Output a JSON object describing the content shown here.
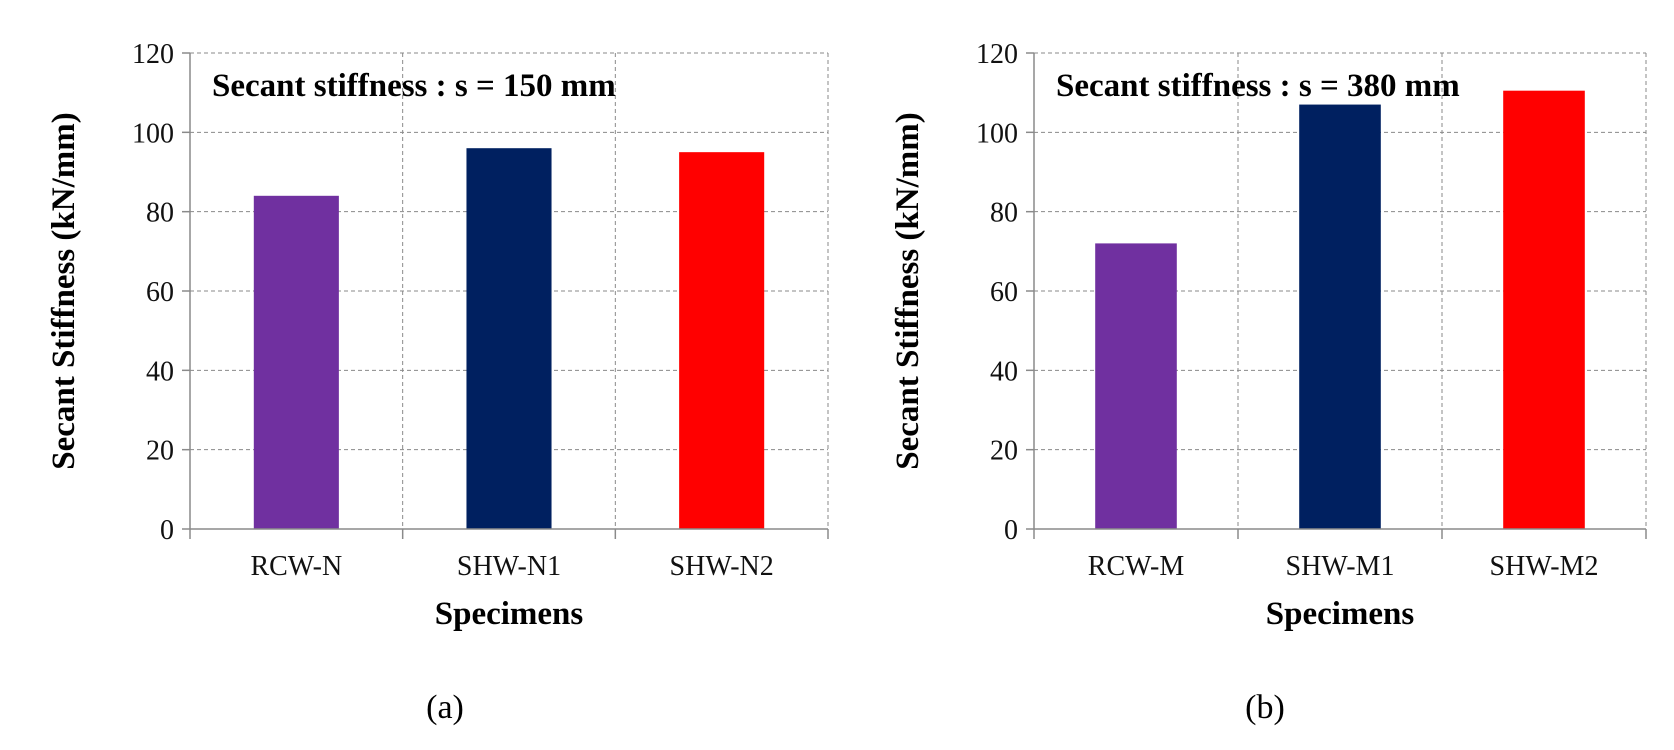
{
  "chart_data": [
    {
      "type": "bar",
      "panel_label": "(a)",
      "title": "Secant stiffness : s = 150 mm",
      "xlabel": "Specimens",
      "ylabel": "Secant Stiffness (kN/mm)",
      "ylim": [
        0,
        120
      ],
      "yticks": [
        0,
        20,
        40,
        60,
        80,
        100,
        120
      ],
      "grid": true,
      "categories": [
        "RCW-N",
        "SHW-N1",
        "SHW-N2"
      ],
      "values": [
        84,
        96,
        95
      ],
      "colors": [
        "#7030a0",
        "#002060",
        "#ff0000"
      ]
    },
    {
      "type": "bar",
      "panel_label": "(b)",
      "title": "Secant stiffness : s = 380 mm",
      "xlabel": "Specimens",
      "ylabel": "Secant Stiffness (kN/mm)",
      "ylim": [
        0,
        120
      ],
      "yticks": [
        0,
        20,
        40,
        60,
        80,
        100,
        120
      ],
      "grid": true,
      "categories": [
        "RCW-M",
        "SHW-M1",
        "SHW-M2"
      ],
      "values": [
        72,
        107,
        110.5
      ],
      "colors": [
        "#7030a0",
        "#002060",
        "#ff0000"
      ]
    }
  ]
}
